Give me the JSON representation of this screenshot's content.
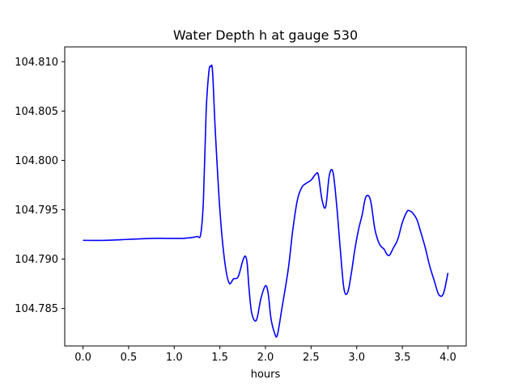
{
  "chart_data": {
    "type": "line",
    "title": "Water Depth h at gauge 530",
    "xlabel": "hours",
    "ylabel": "",
    "xlim": [
      -0.2,
      4.2
    ],
    "ylim": [
      104.7812,
      104.8115
    ],
    "grid": false,
    "xticks": [
      0.0,
      0.5,
      1.0,
      1.5,
      2.0,
      2.5,
      3.0,
      3.5,
      4.0
    ],
    "xtick_labels": [
      "0.0",
      "0.5",
      "1.0",
      "1.5",
      "2.0",
      "2.5",
      "3.0",
      "3.5",
      "4.0"
    ],
    "yticks": [
      104.785,
      104.79,
      104.795,
      104.8,
      104.805,
      104.81
    ],
    "ytick_labels": [
      "104.785",
      "104.790",
      "104.795",
      "104.800",
      "104.805",
      "104.810"
    ],
    "line_color": "#0000ff",
    "series": [
      {
        "x": [
          0.0,
          0.25,
          0.5,
          0.75,
          0.9,
          1.0,
          1.1,
          1.2,
          1.25,
          1.29,
          1.32,
          1.35,
          1.38,
          1.4,
          1.42,
          1.45,
          1.5,
          1.55,
          1.6,
          1.65,
          1.7,
          1.75,
          1.78,
          1.8,
          1.82,
          1.85,
          1.9,
          1.95,
          2.0,
          2.03,
          2.06,
          2.1,
          2.13,
          2.18,
          2.25,
          2.3,
          2.35,
          2.4,
          2.45,
          2.5,
          2.55,
          2.58,
          2.62,
          2.66,
          2.7,
          2.74,
          2.78,
          2.82,
          2.86,
          2.9,
          2.94,
          2.98,
          3.02,
          3.06,
          3.1,
          3.15,
          3.2,
          3.25,
          3.3,
          3.33,
          3.36,
          3.4,
          3.45,
          3.5,
          3.55,
          3.58,
          3.62,
          3.66,
          3.7,
          3.75,
          3.8,
          3.85,
          3.9,
          3.95,
          4.0
        ],
        "y": [
          104.7919,
          104.7919,
          104.792,
          104.7921,
          104.7921,
          104.7921,
          104.7921,
          104.7922,
          104.7923,
          104.7925,
          104.796,
          104.805,
          104.809,
          104.8095,
          104.809,
          104.803,
          104.795,
          104.79,
          104.7876,
          104.788,
          104.7882,
          104.7898,
          104.7903,
          104.7895,
          104.787,
          104.7845,
          104.7838,
          104.786,
          104.7873,
          104.7865,
          104.784,
          104.7825,
          104.7823,
          104.785,
          104.789,
          104.793,
          104.796,
          104.7973,
          104.7977,
          104.798,
          104.7986,
          104.7985,
          104.796,
          104.7953,
          104.7985,
          104.7988,
          104.7955,
          104.791,
          104.787,
          104.7866,
          104.7885,
          104.791,
          104.793,
          104.7945,
          104.7963,
          104.796,
          104.793,
          104.7915,
          104.791,
          104.7905,
          104.7904,
          104.7911,
          104.792,
          104.7937,
          104.7948,
          104.7949,
          104.7946,
          104.794,
          104.7928,
          104.7912,
          104.7893,
          104.7878,
          104.7864,
          104.7865,
          104.7886
        ]
      }
    ]
  }
}
